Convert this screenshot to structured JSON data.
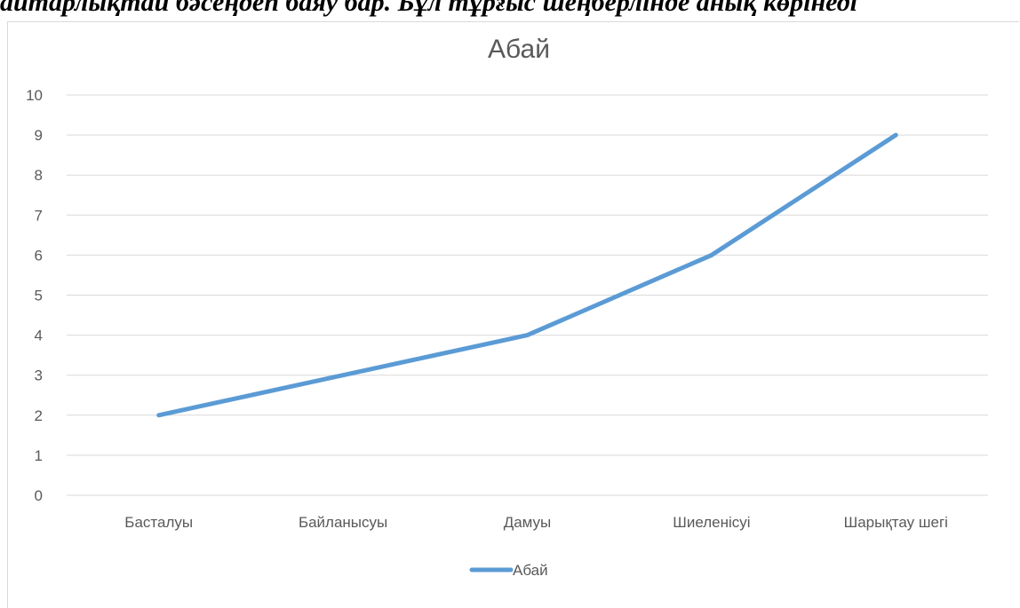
{
  "page_text": {
    "top_line": "айтарлықтай бәсеңдеп баяу бар. Бұл тұрғыс шеңберлінде анық көрінеді"
  },
  "chart_data": {
    "type": "line",
    "title": "Абай",
    "xlabel": "",
    "ylabel": "",
    "categories": [
      "Басталуы",
      "Байланысуы",
      "Дамуы",
      "Шиеленісуі",
      "Шарықтау шегі"
    ],
    "series": [
      {
        "name": "Абай",
        "values": [
          2,
          3,
          4,
          6,
          9
        ],
        "color": "#5b9bd5"
      }
    ],
    "ylim": [
      0,
      10
    ],
    "yticks": [
      0,
      1,
      2,
      3,
      4,
      5,
      6,
      7,
      8,
      9,
      10
    ],
    "grid": true,
    "legend": "bottom"
  }
}
